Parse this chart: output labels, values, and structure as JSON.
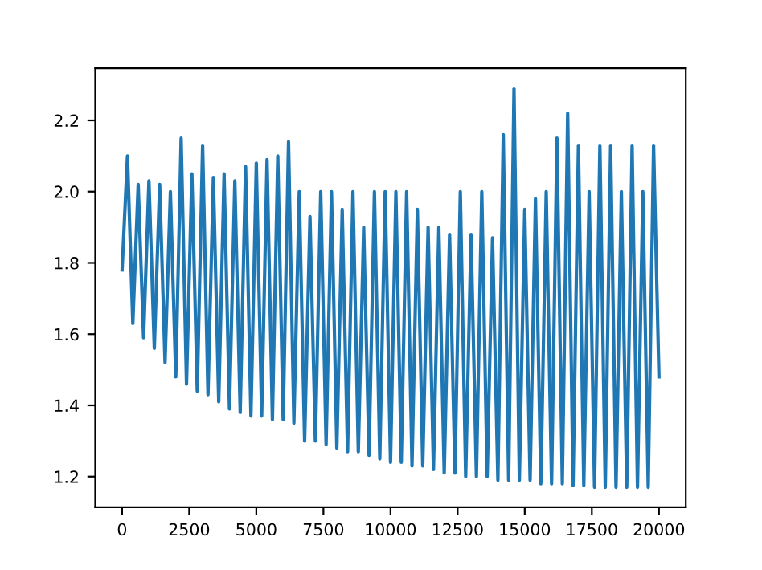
{
  "chart_data": {
    "type": "line",
    "series": [
      {
        "color": "#1f77b4",
        "x": [
          0,
          200,
          400,
          600,
          800,
          1000,
          1200,
          1400,
          1600,
          1800,
          2000,
          2200,
          2400,
          2600,
          2800,
          3000,
          3200,
          3400,
          3600,
          3800,
          4000,
          4200,
          4400,
          4600,
          4800,
          5000,
          5200,
          5400,
          5600,
          5800,
          6000,
          6200,
          6400,
          6600,
          6800,
          7000,
          7200,
          7400,
          7600,
          7800,
          8000,
          8200,
          8400,
          8600,
          8800,
          9000,
          9200,
          9400,
          9600,
          9800,
          10000,
          10200,
          10400,
          10600,
          10800,
          11000,
          11200,
          11400,
          11600,
          11800,
          12000,
          12200,
          12400,
          12600,
          12800,
          13000,
          13200,
          13400,
          13600,
          13800,
          14000,
          14200,
          14400,
          14600,
          14800,
          15000,
          15200,
          15400,
          15600,
          15800,
          16000,
          16200,
          16400,
          16600,
          16800,
          17000,
          17200,
          17400,
          17600,
          17800,
          18000,
          18200,
          18400,
          18600,
          18800,
          19000,
          19200,
          19400,
          19600,
          19800,
          20000
        ],
        "values": [
          1.78,
          2.1,
          1.63,
          2.02,
          1.59,
          2.03,
          1.56,
          2.02,
          1.52,
          2.0,
          1.48,
          2.15,
          1.46,
          2.05,
          1.44,
          2.13,
          1.43,
          2.04,
          1.41,
          2.05,
          1.39,
          2.03,
          1.38,
          2.07,
          1.37,
          2.08,
          1.37,
          2.09,
          1.36,
          2.1,
          1.36,
          2.14,
          1.35,
          2.0,
          1.3,
          1.93,
          1.3,
          2.0,
          1.29,
          2.0,
          1.28,
          1.95,
          1.27,
          2.0,
          1.27,
          1.9,
          1.26,
          2.0,
          1.25,
          2.0,
          1.24,
          2.0,
          1.24,
          2.0,
          1.23,
          1.95,
          1.23,
          1.9,
          1.22,
          1.9,
          1.21,
          1.88,
          1.21,
          2.0,
          1.2,
          1.88,
          1.2,
          2.0,
          1.2,
          1.87,
          1.19,
          2.16,
          1.19,
          2.29,
          1.19,
          1.95,
          1.19,
          1.98,
          1.18,
          2.0,
          1.18,
          2.15,
          1.18,
          2.22,
          1.175,
          2.13,
          1.175,
          2.0,
          1.17,
          2.13,
          1.17,
          2.13,
          1.17,
          2.0,
          1.17,
          2.13,
          1.17,
          2.0,
          1.17,
          2.13,
          1.48
        ]
      }
    ],
    "xlim": [
      -1000,
      21000
    ],
    "ylim": [
      1.114,
      2.346
    ],
    "xticks": [
      0,
      2500,
      5000,
      7500,
      10000,
      12500,
      15000,
      17500,
      20000
    ],
    "yticks": [
      {
        "value": 1.2,
        "label": "1.2"
      },
      {
        "value": 1.4,
        "label": "1.4"
      },
      {
        "value": 1.6,
        "label": "1.6"
      },
      {
        "value": 1.8,
        "label": "1.8"
      },
      {
        "value": 2.0,
        "label": "2.0"
      },
      {
        "value": 2.2,
        "label": "2.2"
      }
    ],
    "grid": false,
    "legend": false,
    "marker": "none",
    "line_style": "solid"
  }
}
